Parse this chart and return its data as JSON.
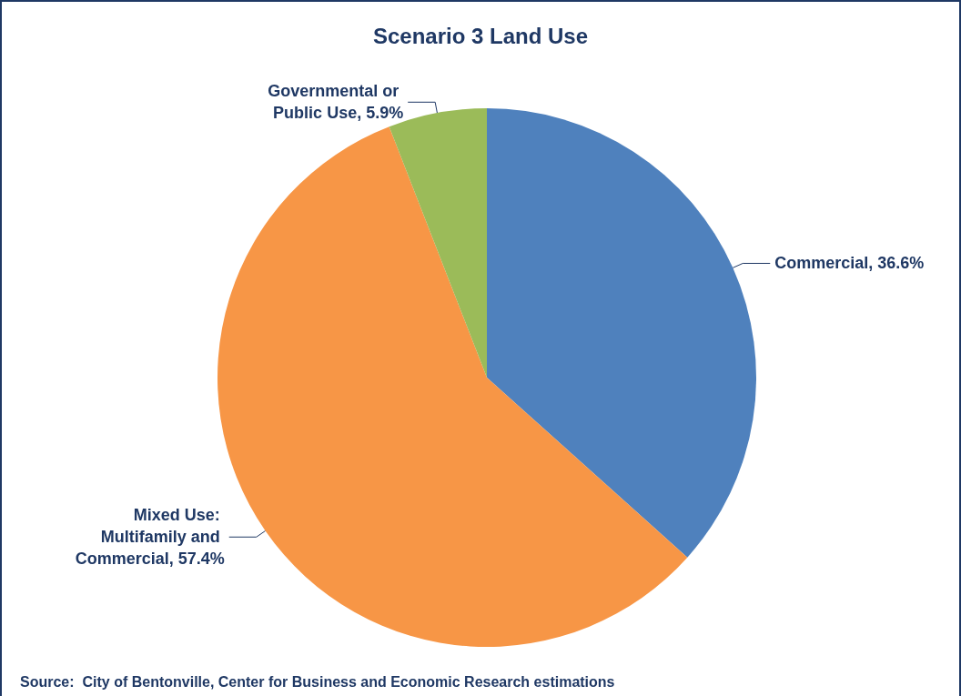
{
  "chart_data": {
    "type": "pie",
    "title": "Scenario 3 Land Use",
    "categories": [
      "Commercial",
      "Mixed Use: Multifamily and Commercial",
      "Governmental or Public Use"
    ],
    "values": [
      36.6,
      57.4,
      5.9
    ],
    "colors": [
      "#4f81bd",
      "#f79646",
      "#9bbb59"
    ],
    "value_labels": [
      "36.6%",
      "57.4%",
      "5.9%"
    ],
    "legend": false,
    "annotations": [
      "Source:  City of Bentonville, Center for Business and Economic Research estimations"
    ]
  }
}
